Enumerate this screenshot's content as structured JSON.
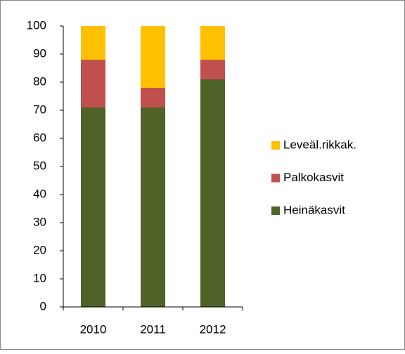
{
  "chart_data": {
    "type": "stacked_bar",
    "categories": [
      "2010",
      "2011",
      "2012"
    ],
    "series": [
      {
        "name": "Heinäkasvit",
        "color": "#4f6228",
        "values": [
          71,
          71,
          81
        ]
      },
      {
        "name": "Palkokasvit",
        "color": "#c0504d",
        "values": [
          17,
          7,
          7
        ]
      },
      {
        "name": "Leveäl.rikkak.",
        "color": "#ffc000",
        "values": [
          12,
          22,
          12
        ]
      }
    ],
    "ylim": [
      0,
      100
    ],
    "yticks": [
      0,
      10,
      20,
      30,
      40,
      50,
      60,
      70,
      80,
      90,
      100
    ],
    "grid": false,
    "legend": "right"
  }
}
